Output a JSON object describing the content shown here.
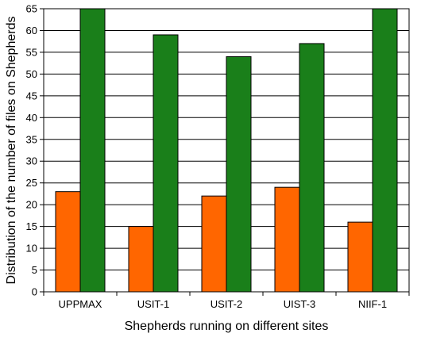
{
  "chart_data": {
    "type": "bar",
    "title": "",
    "xlabel": "Shepherds running on different sites",
    "ylabel": "Distribution of the number of files on Shepherds",
    "categories": [
      "UPPMAX",
      "USIT-1",
      "USIT-2",
      "UIST-3",
      "NIIF-1"
    ],
    "series": [
      {
        "values": [
          23,
          15,
          22,
          24,
          16
        ],
        "color": "#ff6600"
      },
      {
        "values": [
          65,
          59,
          54,
          57,
          65
        ],
        "color": "#1a7f1a"
      }
    ],
    "ylim": [
      0,
      65
    ],
    "yticks": [
      0,
      5,
      10,
      15,
      20,
      25,
      30,
      35,
      40,
      45,
      50,
      55,
      60,
      65
    ],
    "grid": "horizontal",
    "legend": "none"
  }
}
